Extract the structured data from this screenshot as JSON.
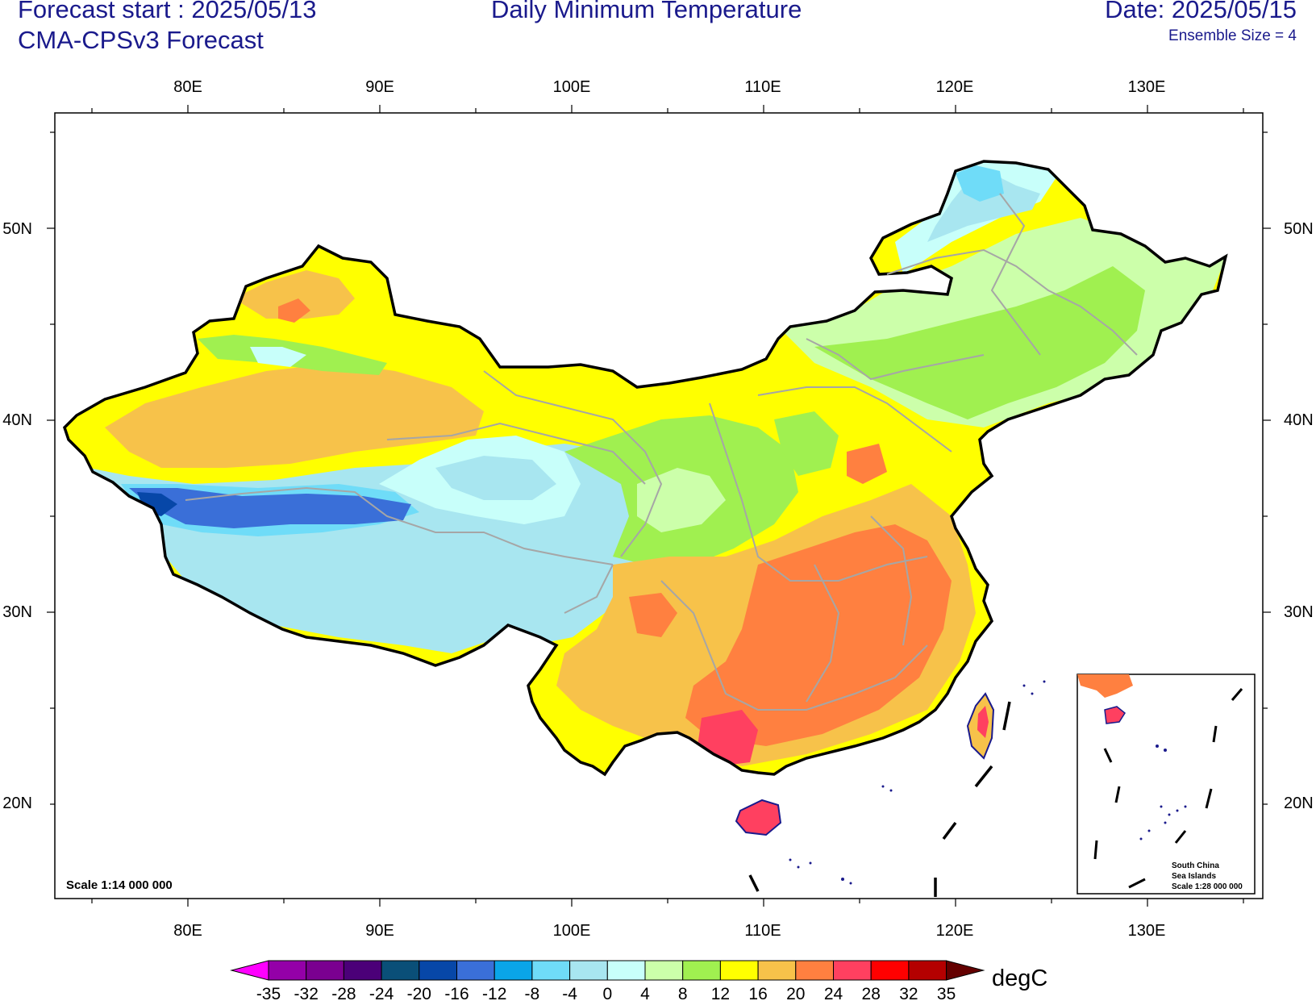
{
  "header": {
    "forecast_start": "Forecast start : 2025/05/13",
    "model": "CMA-CPSv3 Forecast",
    "title": "Daily Minimum Temperature",
    "date": "Date: 2025/05/15",
    "ensemble": "Ensemble Size = 4"
  },
  "axes": {
    "lon_labels": [
      "80E",
      "90E",
      "100E",
      "110E",
      "120E",
      "130E"
    ],
    "lat_labels": [
      "50N",
      "40N",
      "30N",
      "20N"
    ]
  },
  "map": {
    "scale_label": "Scale 1:14 000 000",
    "inset": {
      "line1": "South China",
      "line2": "Sea Islands",
      "line3": "Scale 1:28 000 000"
    }
  },
  "colorbar": {
    "unit": "degC",
    "labels": [
      "-35",
      "-32",
      "-28",
      "-24",
      "-20",
      "-16",
      "-12",
      "-8",
      "-4",
      "0",
      "4",
      "8",
      "12",
      "16",
      "20",
      "24",
      "28",
      "32",
      "35"
    ],
    "colors": [
      "#ff00ff",
      "#9400a8",
      "#7a0090",
      "#4b0078",
      "#0a4f78",
      "#0747a8",
      "#3a6fd8",
      "#0aa5e8",
      "#6fdcf8",
      "#a8e6f0",
      "#c8fffa",
      "#ccffaa",
      "#a0f050",
      "#ffff00",
      "#f7c24a",
      "#ff8040",
      "#ff4060",
      "#ff0000",
      "#b40000",
      "#640000"
    ]
  }
}
